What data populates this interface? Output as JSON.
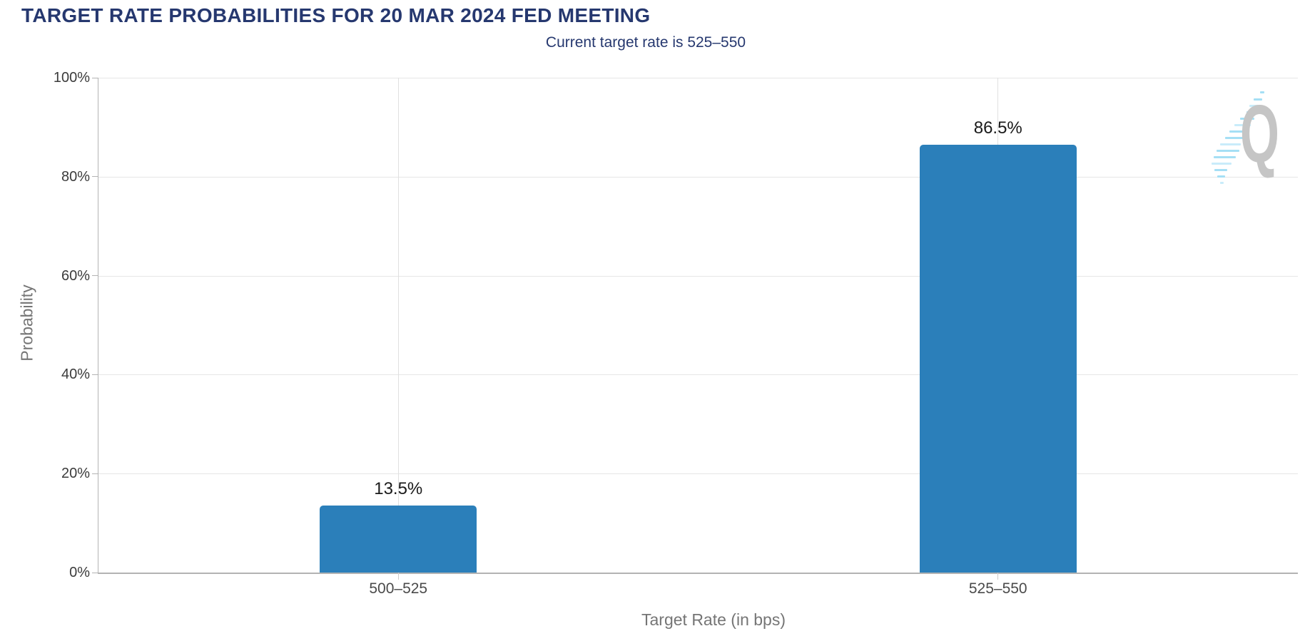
{
  "chart_data": {
    "type": "bar",
    "title": "TARGET RATE PROBABILITIES FOR 20 MAR 2024 FED MEETING",
    "subtitle": "Current target rate is 525–550",
    "categories": [
      "500–525",
      "525–550"
    ],
    "values": [
      13.5,
      86.5
    ],
    "value_labels": [
      "13.5%",
      "86.5%"
    ],
    "xlabel": "Target Rate (in bps)",
    "ylabel": "Probability",
    "ylim": [
      0,
      100
    ],
    "yticks": [
      0,
      20,
      40,
      60,
      80,
      100
    ],
    "ytick_labels": [
      "0%",
      "20%",
      "40%",
      "60%",
      "80%",
      "100%"
    ],
    "grid": true,
    "legend": false,
    "bar_color": "#2b7fba"
  },
  "colors": {
    "bar": "#2b7fba",
    "heading": "#26386f",
    "axis_line": "#b3b3b3",
    "h_gridline": "#e6e6e6",
    "v_gridline": "#e0e0e0",
    "ytick_label": "#3b3b3b",
    "xtick_label": "#4a4a4a",
    "axis_title": "#757575",
    "value_label": "#1a1a1a",
    "watermark_letter": "#c5c5c5",
    "watermark_dash_a": "#a5dff5",
    "watermark_dash_b": "#c9ecfa"
  },
  "watermark": {
    "letter": "Q"
  }
}
